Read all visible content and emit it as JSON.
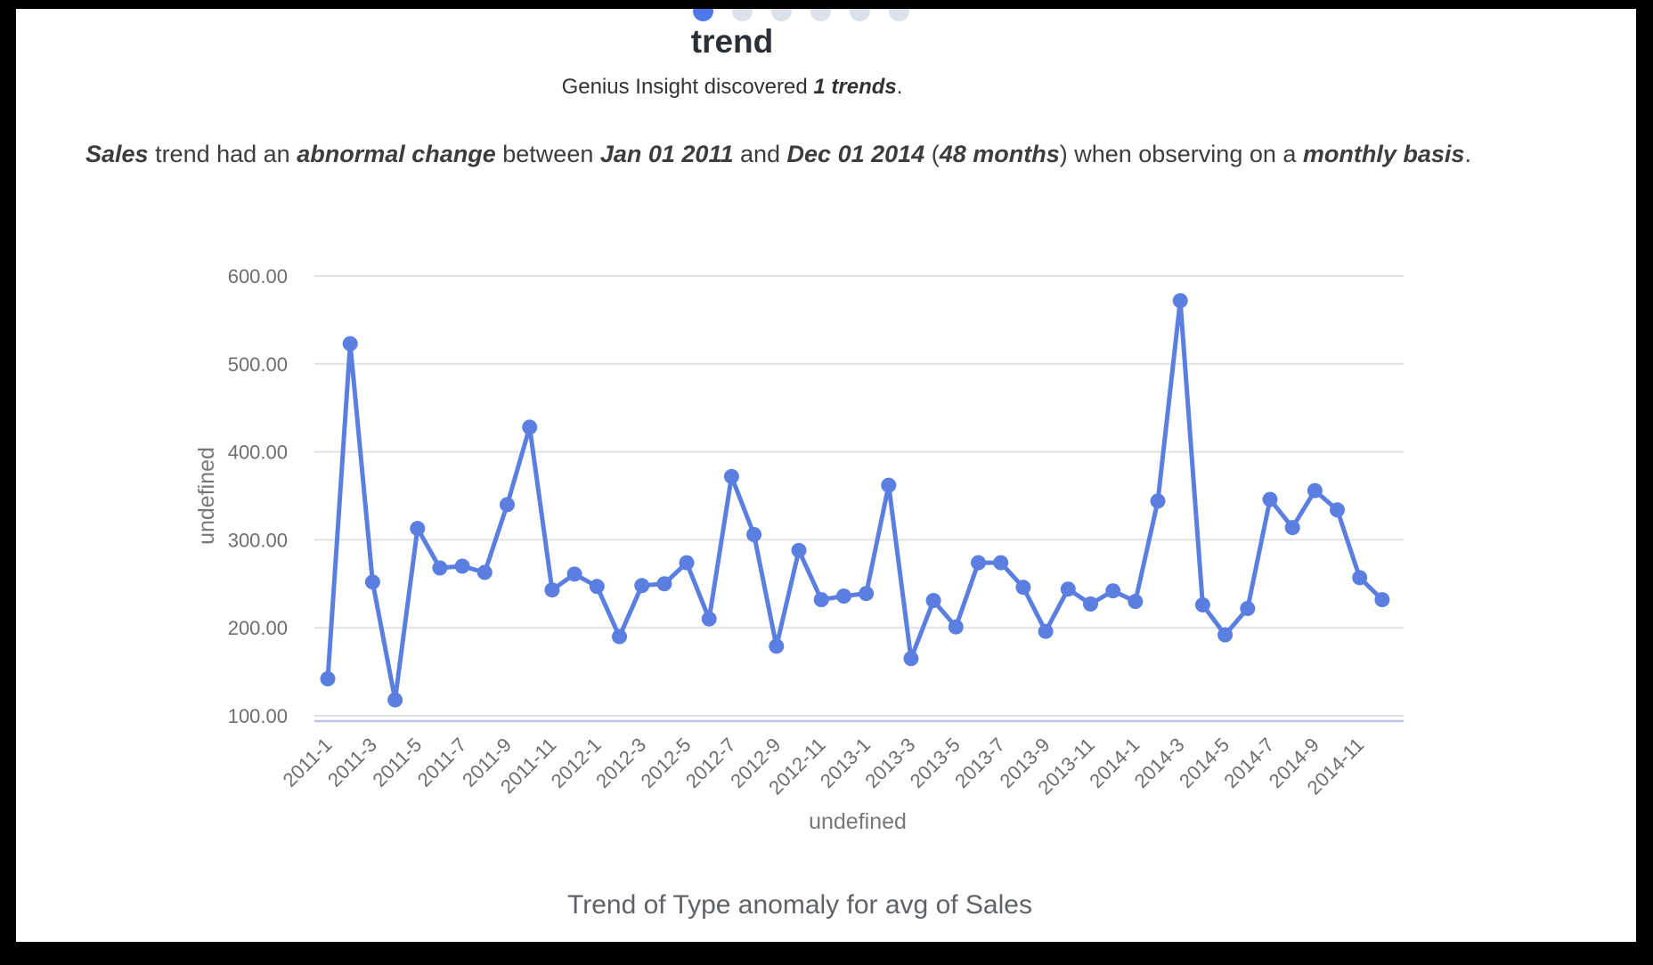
{
  "carousel": {
    "dot_count": 6,
    "active_index": 0,
    "active_color": "#4d79ea",
    "inactive_color": "#dbe2e9"
  },
  "header": {
    "title": "trend",
    "subtitle_segments": [
      {
        "text": "Genius Insight discovered ",
        "bold": false
      },
      {
        "text": "1 trends",
        "bold": true
      },
      {
        "text": ".",
        "bold": false
      }
    ]
  },
  "insight": {
    "segments": [
      {
        "text": "Sales",
        "bold": true
      },
      {
        "text": " trend had an ",
        "bold": false
      },
      {
        "text": "abnormal change",
        "bold": true
      },
      {
        "text": " between ",
        "bold": false
      },
      {
        "text": "Jan 01 2011",
        "bold": true
      },
      {
        "text": " and ",
        "bold": false
      },
      {
        "text": "Dec 01 2014",
        "bold": true
      },
      {
        "text": " (",
        "bold": false
      },
      {
        "text": "48 months",
        "bold": true
      },
      {
        "text": ") when observing on a ",
        "bold": false
      },
      {
        "text": "monthly basis",
        "bold": true
      },
      {
        "text": ".",
        "bold": false
      }
    ]
  },
  "chart_data": {
    "type": "line",
    "title": "Trend of Type anomaly for avg of Sales",
    "xlabel": "undefined",
    "ylabel": "undefined",
    "categories": [
      "2011-1",
      "2011-2",
      "2011-3",
      "2011-4",
      "2011-5",
      "2011-6",
      "2011-7",
      "2011-8",
      "2011-9",
      "2011-10",
      "2011-11",
      "2011-12",
      "2012-1",
      "2012-2",
      "2012-3",
      "2012-4",
      "2012-5",
      "2012-6",
      "2012-7",
      "2012-8",
      "2012-9",
      "2012-10",
      "2012-11",
      "2012-12",
      "2013-1",
      "2013-2",
      "2013-3",
      "2013-4",
      "2013-5",
      "2013-6",
      "2013-7",
      "2013-8",
      "2013-9",
      "2013-10",
      "2013-11",
      "2013-12",
      "2014-1",
      "2014-2",
      "2014-3",
      "2014-4",
      "2014-5",
      "2014-6",
      "2014-7",
      "2014-8",
      "2014-9",
      "2014-10",
      "2014-11",
      "2014-12"
    ],
    "values": [
      142,
      523,
      252,
      118,
      313,
      268,
      270,
      263,
      340,
      428,
      243,
      261,
      247,
      190,
      248,
      250,
      274,
      210,
      372,
      306,
      179,
      288,
      232,
      236,
      239,
      362,
      165,
      231,
      201,
      274,
      274,
      246,
      196,
      244,
      227,
      242,
      230,
      344,
      572,
      226,
      192,
      222,
      346,
      314,
      356,
      334,
      257,
      232
    ],
    "ylim": [
      100,
      600
    ],
    "yticks": [
      600,
      500,
      400,
      300,
      200,
      100
    ],
    "ytick_labels": [
      "600.00",
      "500.00",
      "400.00",
      "300.00",
      "200.00",
      "100.00"
    ],
    "x_tick_step": 2,
    "grid": true,
    "legend": "none",
    "colors": {
      "line": "#5b7fe0",
      "point": "#5b7fe0",
      "grid": "#e1e1e4",
      "domain_line": "#b9c6ea",
      "tick_label": "#6e6e6e",
      "axis_title": "#787878"
    }
  }
}
